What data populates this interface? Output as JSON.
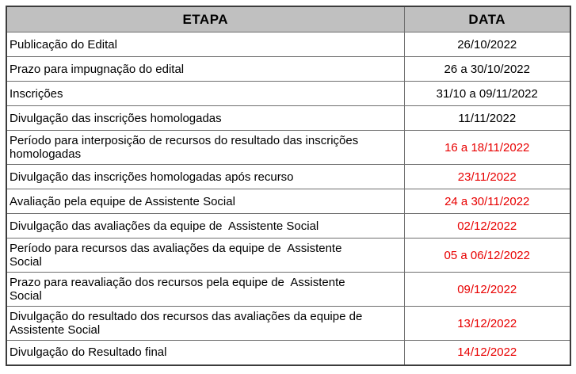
{
  "table": {
    "headers": {
      "etapa": "ETAPA",
      "data": "DATA"
    },
    "rows": [
      {
        "etapa": "Publicação do Edital",
        "data": "26/10/2022",
        "date_color": "black"
      },
      {
        "etapa": "Prazo para impugnação do edital",
        "data": "26 a 30/10/2022",
        "date_color": "black"
      },
      {
        "etapa": "Inscrições",
        "data": "31/10 a 09/11/2022",
        "date_color": "black"
      },
      {
        "etapa": "Divulgação das inscrições homologadas",
        "data": "11/11/2022",
        "date_color": "black"
      },
      {
        "etapa": "Período para interposição de recursos do resultado das inscrições\nhomologadas",
        "data": "16 a 18/11/2022",
        "date_color": "red"
      },
      {
        "etapa": "Divulgação das inscrições homologadas após recurso",
        "data": "23/11/2022",
        "date_color": "red"
      },
      {
        "etapa": "Avaliação pela equipe de Assistente Social",
        "data": "24 a 30/11/2022",
        "date_color": "red"
      },
      {
        "etapa": "Divulgação das avaliações da equipe de  Assistente Social",
        "data": "02/12/2022",
        "date_color": "red"
      },
      {
        "etapa": "Período para recursos das avaliações da equipe de  Assistente\nSocial",
        "data": "05 a 06/12/2022",
        "date_color": "red"
      },
      {
        "etapa": "Prazo para reavaliação dos recursos pela equipe de  Assistente\nSocial",
        "data": "09/12/2022",
        "date_color": "red"
      },
      {
        "etapa": "Divulgação do resultado dos recursos das avaliações da equipe de\nAssistente Social",
        "data": "13/12/2022",
        "date_color": "red"
      },
      {
        "etapa": "Divulgação do Resultado final",
        "data": "14/12/2022",
        "date_color": "red"
      }
    ],
    "colors": {
      "black": "#000000",
      "red": "#e80000",
      "header_bg": "#c0c0c0"
    }
  }
}
